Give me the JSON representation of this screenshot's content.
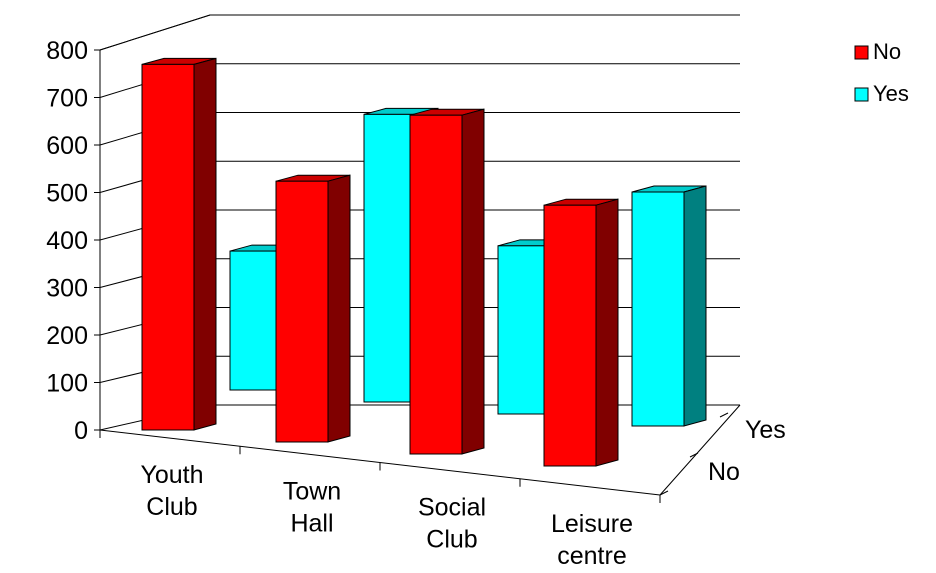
{
  "chart_data": {
    "type": "bar",
    "categories": [
      "Youth Club",
      "Town Hall",
      "Social Club",
      "Leisure centre"
    ],
    "category_lines": [
      [
        "Youth",
        "Club"
      ],
      [
        "Town",
        "Hall"
      ],
      [
        "Social",
        "Club"
      ],
      [
        "Leisure",
        "centre"
      ]
    ],
    "series": [
      {
        "name": "No",
        "values": [
          750,
          535,
          695,
          535
        ]
      },
      {
        "name": "Yes",
        "values": [
          285,
          590,
          345,
          480
        ]
      }
    ],
    "ylim": [
      0,
      800
    ],
    "yticks": [
      "0",
      "100",
      "200",
      "300",
      "400",
      "500",
      "600",
      "700",
      "800"
    ],
    "depth_labels": [
      "Yes",
      "No"
    ],
    "grid": true,
    "legend": "top-right",
    "colors": {
      "No": {
        "front": "#ff0000",
        "top": "#cc0000",
        "side": "#800000"
      },
      "Yes": {
        "front": "#00ffff",
        "top": "#00cccc",
        "side": "#008080"
      }
    }
  }
}
